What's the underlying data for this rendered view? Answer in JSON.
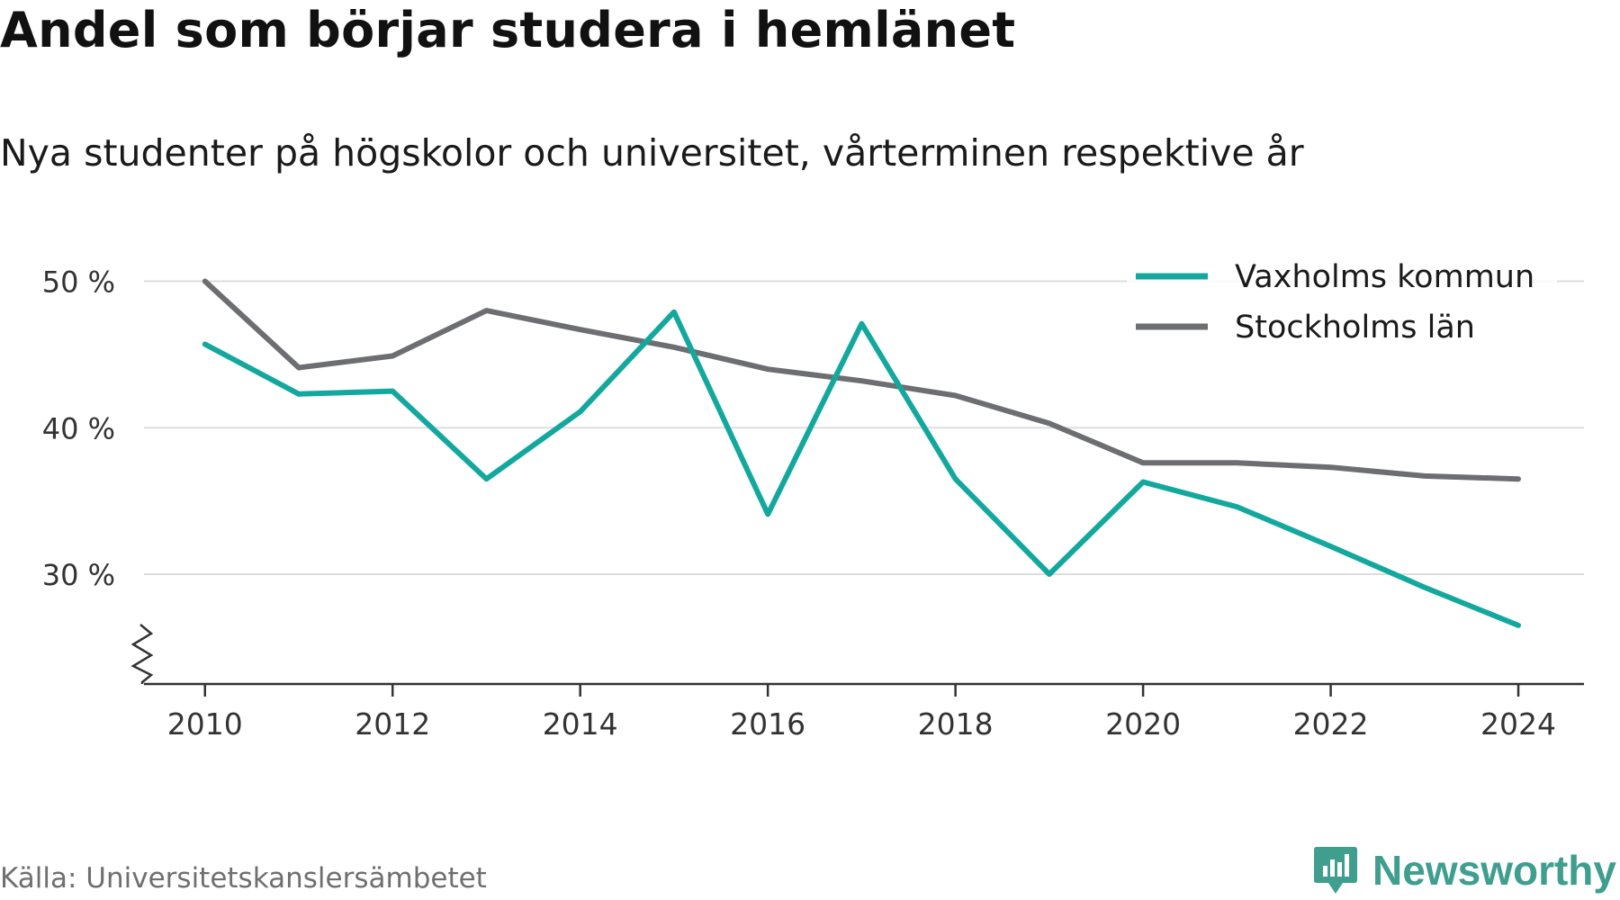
{
  "title": "Andel som börjar studera i hemlänet",
  "subtitle": "Nya studenter på högskolor och universitet, vårterminen respektive år",
  "source": "Källa: Universitetskanslersämbetet",
  "brand": {
    "name": "Newsworthy",
    "color": "#3f9e8e",
    "icon": "newsworthy-logo-icon"
  },
  "chart_data": {
    "type": "line",
    "x": [
      2010,
      2011,
      2012,
      2013,
      2014,
      2015,
      2016,
      2017,
      2018,
      2019,
      2020,
      2021,
      2022,
      2023,
      2024
    ],
    "series": [
      {
        "name": "Vaxholms kommun",
        "color": "#13a89e",
        "values": [
          45.7,
          42.3,
          42.5,
          36.5,
          41.1,
          47.9,
          34.1,
          47.1,
          36.5,
          30.0,
          36.3,
          34.6,
          31.9,
          29.1,
          26.5
        ]
      },
      {
        "name": "Stockholms län",
        "color": "#6d6e71",
        "values": [
          50.0,
          44.1,
          44.9,
          48.0,
          46.7,
          45.5,
          44.0,
          43.2,
          42.2,
          40.3,
          37.6,
          37.6,
          37.3,
          36.7,
          36.5
        ]
      }
    ],
    "y_ticks": [
      30,
      40,
      50
    ],
    "y_tick_labels": [
      "30 %",
      "40 %",
      "50 %"
    ],
    "x_ticks": [
      2010,
      2012,
      2014,
      2016,
      2018,
      2020,
      2022,
      2024
    ],
    "x_tick_labels": [
      "2010",
      "2012",
      "2014",
      "2016",
      "2018",
      "2020",
      "2022",
      "2024"
    ],
    "ylim": [
      22.5,
      52
    ],
    "xlim": [
      2009.35,
      2024.7
    ],
    "axis_break": true,
    "grid": true,
    "legend_position": "top-right",
    "gridline_color": "#dddddd",
    "axis_color": "#333333"
  }
}
